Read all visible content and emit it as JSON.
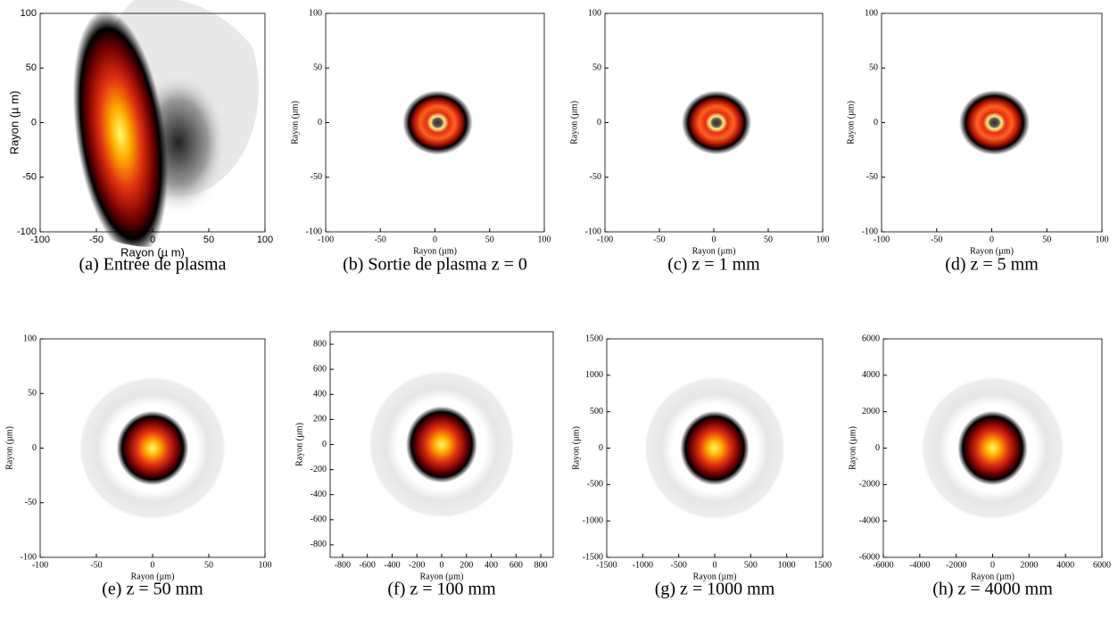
{
  "chart_data": [
    {
      "type": "heatmap",
      "caption": "(a) Entrée de plasma",
      "xlabel": "Rayon (µ m)",
      "ylabel": "Rayon (µ m)",
      "xlim": [
        -100,
        100
      ],
      "ylim": [
        -100,
        100
      ],
      "xticks": [
        -100,
        -50,
        0,
        50,
        100
      ],
      "yticks": [
        -100,
        -50,
        0,
        50,
        100
      ]
    },
    {
      "type": "heatmap",
      "caption": "(b) Sortie de plasma z = 0",
      "xlabel": "Rayon (µm)",
      "ylabel": "Rayon (µm)",
      "xlim": [
        -100,
        100
      ],
      "ylim": [
        -100,
        100
      ],
      "xticks": [
        -100,
        -50,
        0,
        50,
        100
      ],
      "yticks": [
        -100,
        -50,
        0,
        50,
        100
      ]
    },
    {
      "type": "heatmap",
      "caption": "(c) z = 1 mm",
      "xlabel": "Rayon (µm)",
      "ylabel": "Rayon (µm)",
      "xlim": [
        -100,
        100
      ],
      "ylim": [
        -100,
        100
      ],
      "xticks": [
        -100,
        -50,
        0,
        50,
        100
      ],
      "yticks": [
        -100,
        -50,
        0,
        50,
        100
      ]
    },
    {
      "type": "heatmap",
      "caption": "(d) z = 5 mm",
      "xlabel": "Rayon (µm)",
      "ylabel": "Rayon (µm)",
      "xlim": [
        -100,
        100
      ],
      "ylim": [
        -100,
        100
      ],
      "xticks": [
        -100,
        -50,
        0,
        50,
        100
      ],
      "yticks": [
        -100,
        -50,
        0,
        50,
        100
      ]
    },
    {
      "type": "heatmap",
      "caption": "(e) z = 50 mm",
      "xlabel": "Rayon (µm)",
      "ylabel": "Rayon (µm)",
      "xlim": [
        -100,
        100
      ],
      "ylim": [
        -100,
        100
      ],
      "xticks": [
        -100,
        -50,
        0,
        50,
        100
      ],
      "yticks": [
        -100,
        -50,
        0,
        50,
        100
      ]
    },
    {
      "type": "heatmap",
      "caption": "(f) z = 100 mm",
      "xlabel": "Rayon (µm)",
      "ylabel": "Rayon (µm)",
      "xlim": [
        -900,
        900
      ],
      "ylim": [
        -900,
        900
      ],
      "xticks": [
        -800,
        -600,
        -400,
        -200,
        0,
        200,
        400,
        600,
        800
      ],
      "yticks": [
        -800,
        -600,
        -400,
        -200,
        0,
        200,
        400,
        600,
        800
      ]
    },
    {
      "type": "heatmap",
      "caption": "(g) z = 1000 mm",
      "xlabel": "Rayon (µm)",
      "ylabel": "Rayon (µm)",
      "xlim": [
        -1500,
        1500
      ],
      "ylim": [
        -1500,
        1500
      ],
      "xticks": [
        -1500,
        -1000,
        -500,
        0,
        500,
        1000,
        1500
      ],
      "yticks": [
        -1500,
        -1000,
        -500,
        0,
        500,
        1000,
        1500
      ]
    },
    {
      "type": "heatmap",
      "caption": "(h) z = 4000 mm",
      "xlabel": "Rayon (µm)",
      "ylabel": "Rayon (µm)",
      "xlim": [
        -6000,
        6000
      ],
      "ylim": [
        -6000,
        6000
      ],
      "xticks": [
        -6000,
        -4000,
        -2000,
        0,
        2000,
        4000,
        6000
      ],
      "yticks": [
        -6000,
        -4000,
        -2000,
        0,
        2000,
        4000,
        6000
      ]
    }
  ]
}
